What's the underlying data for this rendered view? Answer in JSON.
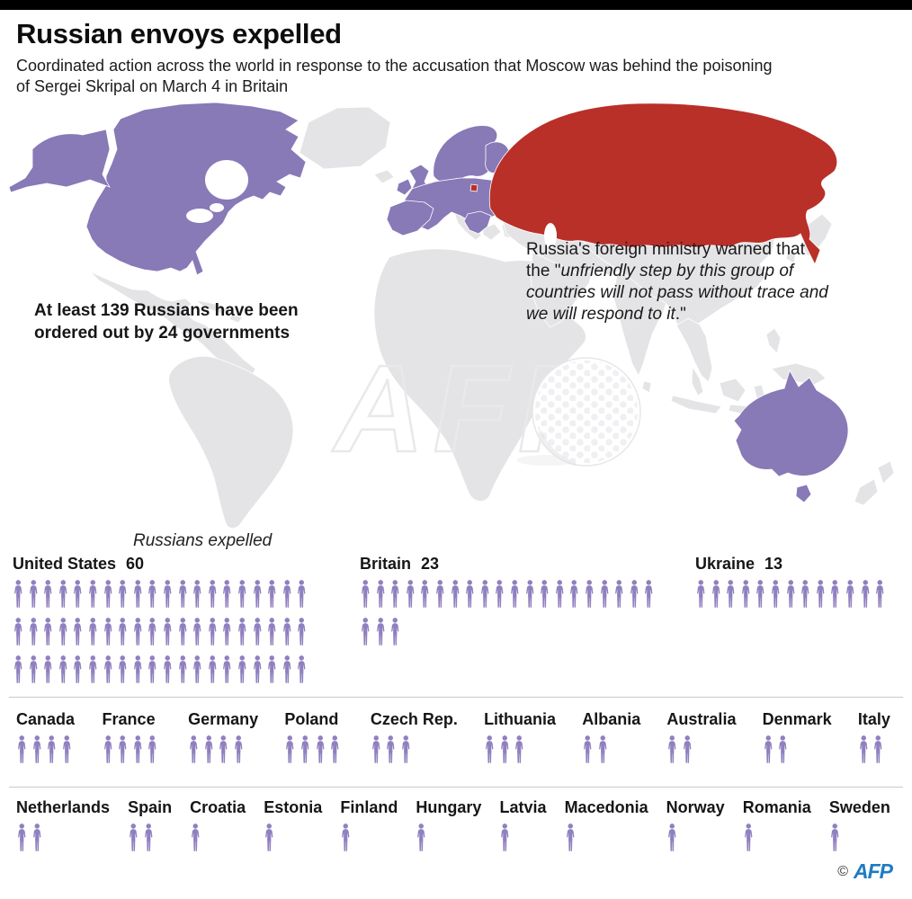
{
  "header": {
    "title": "Russian envoys expelled",
    "subtitle": "Coordinated action across the world in response to the accusation that Moscow was behind the poisoning of Sergei Skripal on March 4 in Britain"
  },
  "map": {
    "annotation_left": "At least 139 Russians have been ordered out by 24 governments",
    "quote_prefix": "Russia's foreign ministry warned that the \"",
    "quote_italic": "unfriendly step by this group of countries will not pass without trace and we will respond to it",
    "quote_suffix": ".\"",
    "colors": {
      "expelling_countries": "#8879b7",
      "russia": "#b93029",
      "other_land": "#e4e3e6"
    }
  },
  "chart_data": {
    "type": "pictogram",
    "title": "Russians expelled",
    "icon": "person-icon",
    "icon_color": "#8f80bf",
    "summary": "At least 139 Russians expelled, ordered out by 24 governments",
    "groups": [
      [
        {
          "country": "United States",
          "value": 60
        },
        {
          "country": "Britain",
          "value": 23
        },
        {
          "country": "Ukraine",
          "value": 13
        }
      ],
      [
        {
          "country": "Canada",
          "value": 4
        },
        {
          "country": "France",
          "value": 4
        },
        {
          "country": "Germany",
          "value": 4
        },
        {
          "country": "Poland",
          "value": 4
        },
        {
          "country": "Czech Rep.",
          "value": 3
        },
        {
          "country": "Lithuania",
          "value": 3
        },
        {
          "country": "Albania",
          "value": 2
        },
        {
          "country": "Australia",
          "value": 2
        },
        {
          "country": "Denmark",
          "value": 2
        },
        {
          "country": "Italy",
          "value": 2
        }
      ],
      [
        {
          "country": "Netherlands",
          "value": 2
        },
        {
          "country": "Spain",
          "value": 2
        },
        {
          "country": "Croatia",
          "value": 1
        },
        {
          "country": "Estonia",
          "value": 1
        },
        {
          "country": "Finland",
          "value": 1
        },
        {
          "country": "Hungary",
          "value": 1
        },
        {
          "country": "Latvia",
          "value": 1
        },
        {
          "country": "Macedonia",
          "value": 1
        },
        {
          "country": "Norway",
          "value": 1
        },
        {
          "country": "Romania",
          "value": 1
        },
        {
          "country": "Sweden",
          "value": 1
        }
      ]
    ]
  },
  "footer": {
    "copyright": "©",
    "brand": "AFP"
  }
}
